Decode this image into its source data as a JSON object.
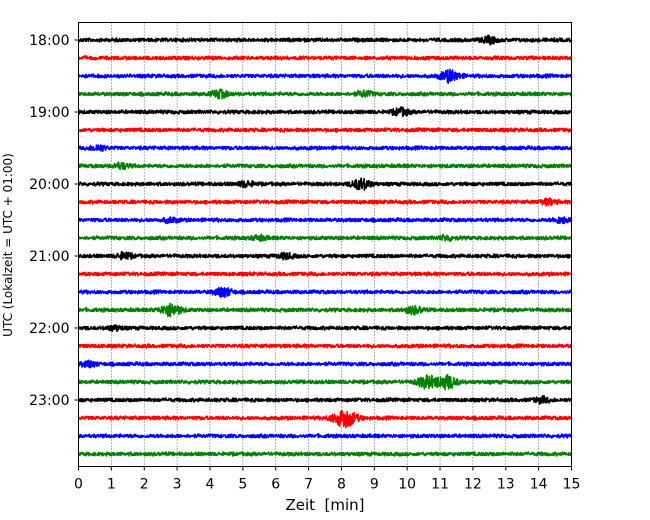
{
  "chart_data": {
    "type": "line",
    "title": "",
    "xlabel": "Zeit  [min]",
    "ylabel": "UTC (Lokalzeit = UTC + 01:00)",
    "xlim": [
      0,
      15
    ],
    "x_ticks": [
      "0",
      "1",
      "2",
      "3",
      "4",
      "5",
      "6",
      "7",
      "8",
      "9",
      "10",
      "11",
      "12",
      "13",
      "14",
      "15"
    ],
    "y_ticks": [
      "18:00",
      "19:00",
      "20:00",
      "21:00",
      "22:00",
      "23:00"
    ],
    "grid": "vertical dotted at each minute",
    "trace_interval_min": 15,
    "trace_start": "18:00",
    "trace_colors": [
      "#000000",
      "#ff0000",
      "#0000ff",
      "#008000"
    ],
    "traces": [
      {
        "start": "18:00",
        "color": "#000000",
        "events": [
          {
            "t": 12.5,
            "amp": 0.7
          }
        ]
      },
      {
        "start": "18:15",
        "color": "#ff0000",
        "events": []
      },
      {
        "start": "18:30",
        "color": "#0000ff",
        "events": [
          {
            "t": 11.3,
            "amp": 1.3
          }
        ]
      },
      {
        "start": "18:45",
        "color": "#008000",
        "events": [
          {
            "t": 4.3,
            "amp": 0.8
          },
          {
            "t": 8.7,
            "amp": 0.6
          }
        ]
      },
      {
        "start": "19:00",
        "color": "#000000",
        "events": [
          {
            "t": 9.8,
            "amp": 0.8
          }
        ]
      },
      {
        "start": "19:15",
        "color": "#ff0000",
        "events": []
      },
      {
        "start": "19:30",
        "color": "#0000ff",
        "events": [
          {
            "t": 0.6,
            "amp": 0.6
          }
        ]
      },
      {
        "start": "19:45",
        "color": "#008000",
        "events": [
          {
            "t": 1.3,
            "amp": 0.6
          }
        ]
      },
      {
        "start": "20:00",
        "color": "#000000",
        "events": [
          {
            "t": 8.6,
            "amp": 1.2
          },
          {
            "t": 5.1,
            "amp": 0.6
          }
        ]
      },
      {
        "start": "20:15",
        "color": "#ff0000",
        "events": [
          {
            "t": 14.3,
            "amp": 0.6
          }
        ]
      },
      {
        "start": "20:30",
        "color": "#0000ff",
        "events": [
          {
            "t": 14.7,
            "amp": 0.6
          },
          {
            "t": 2.8,
            "amp": 0.5
          }
        ]
      },
      {
        "start": "20:45",
        "color": "#008000",
        "events": [
          {
            "t": 5.5,
            "amp": 0.5
          },
          {
            "t": 11.2,
            "amp": 0.5
          }
        ]
      },
      {
        "start": "21:00",
        "color": "#000000",
        "events": [
          {
            "t": 1.4,
            "amp": 0.7
          },
          {
            "t": 6.3,
            "amp": 0.6
          }
        ]
      },
      {
        "start": "21:15",
        "color": "#ff0000",
        "events": []
      },
      {
        "start": "21:30",
        "color": "#0000ff",
        "events": [
          {
            "t": 4.4,
            "amp": 1.0
          }
        ]
      },
      {
        "start": "21:45",
        "color": "#008000",
        "events": [
          {
            "t": 2.8,
            "amp": 1.4
          },
          {
            "t": 10.2,
            "amp": 0.8
          }
        ]
      },
      {
        "start": "22:00",
        "color": "#000000",
        "events": [
          {
            "t": 1.1,
            "amp": 0.5
          }
        ]
      },
      {
        "start": "22:15",
        "color": "#ff0000",
        "events": []
      },
      {
        "start": "22:30",
        "color": "#0000ff",
        "events": [
          {
            "t": 0.3,
            "amp": 0.6
          }
        ]
      },
      {
        "start": "22:45",
        "color": "#008000",
        "events": [
          {
            "t": 10.6,
            "amp": 1.3
          },
          {
            "t": 11.2,
            "amp": 1.5
          }
        ]
      },
      {
        "start": "23:00",
        "color": "#000000",
        "events": [
          {
            "t": 14.1,
            "amp": 0.6
          }
        ]
      },
      {
        "start": "23:15",
        "color": "#ff0000",
        "events": [
          {
            "t": 8.1,
            "amp": 2.0
          }
        ]
      },
      {
        "start": "23:30",
        "color": "#0000ff",
        "events": []
      },
      {
        "start": "23:45",
        "color": "#008000",
        "events": []
      }
    ]
  }
}
